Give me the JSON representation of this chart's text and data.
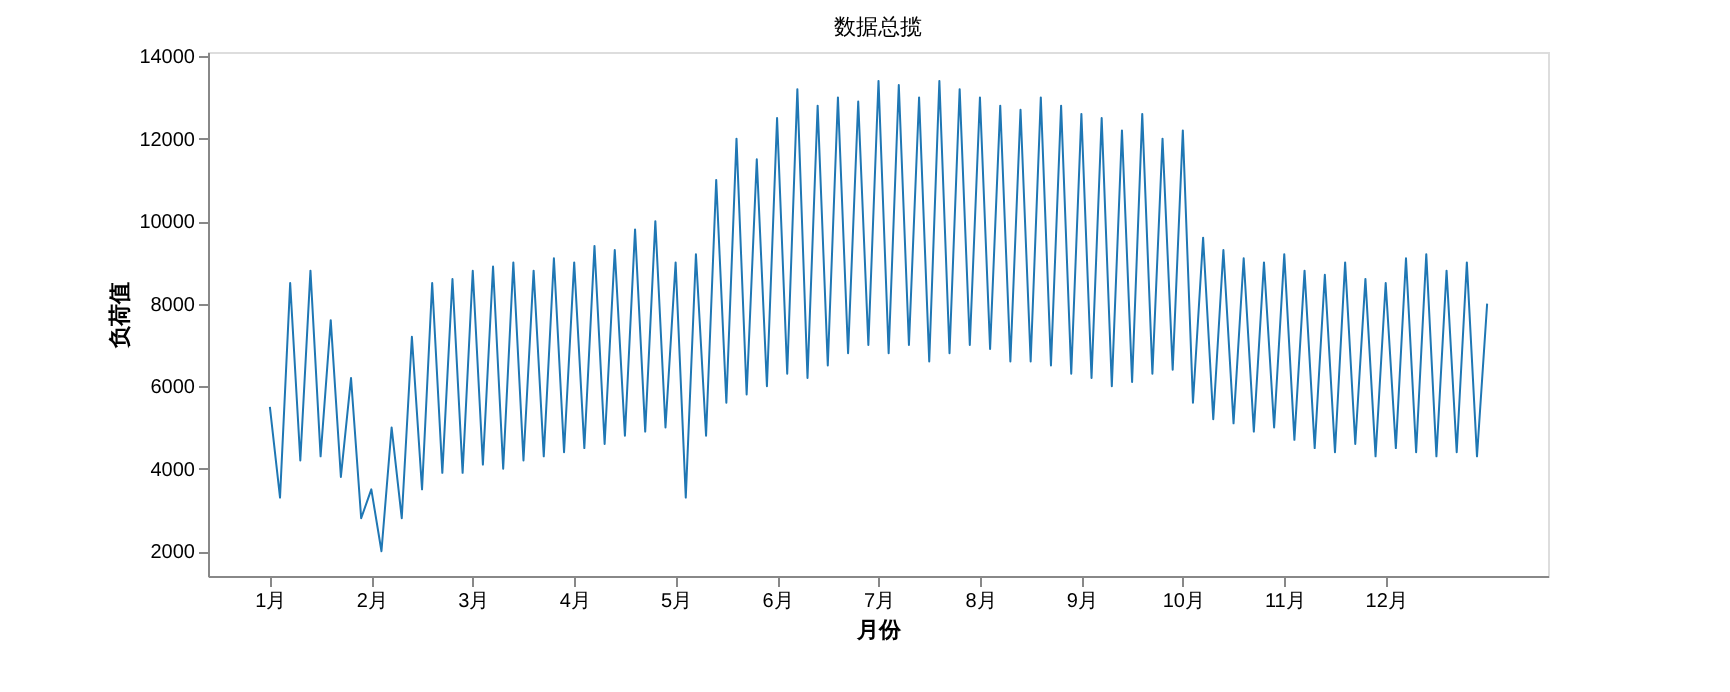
{
  "chart_data": {
    "type": "line",
    "title": "数据总揽",
    "xlabel": "月份",
    "ylabel": "负荷值",
    "x": [
      1.0,
      1.1,
      1.2,
      1.3,
      1.4,
      1.5,
      1.6,
      1.7,
      1.8,
      1.9,
      2.0,
      2.1,
      2.2,
      2.3,
      2.4,
      2.5,
      2.6,
      2.7,
      2.8,
      2.9,
      3.0,
      3.1,
      3.2,
      3.3,
      3.4,
      3.5,
      3.6,
      3.7,
      3.8,
      3.9,
      4.0,
      4.1,
      4.2,
      4.3,
      4.4,
      4.5,
      4.6,
      4.7,
      4.8,
      4.9,
      5.0,
      5.1,
      5.2,
      5.3,
      5.4,
      5.5,
      5.6,
      5.7,
      5.8,
      5.9,
      6.0,
      6.1,
      6.2,
      6.3,
      6.4,
      6.5,
      6.6,
      6.7,
      6.8,
      6.9,
      7.0,
      7.1,
      7.2,
      7.3,
      7.4,
      7.5,
      7.6,
      7.7,
      7.8,
      7.9,
      8.0,
      8.1,
      8.2,
      8.3,
      8.4,
      8.5,
      8.6,
      8.7,
      8.8,
      8.9,
      9.0,
      9.1,
      9.2,
      9.3,
      9.4,
      9.5,
      9.6,
      9.7,
      9.8,
      9.9,
      10.0,
      10.1,
      10.2,
      10.3,
      10.4,
      10.5,
      10.6,
      10.7,
      10.8,
      10.9,
      11.0,
      11.1,
      11.2,
      11.3,
      11.4,
      11.5,
      11.6,
      11.7,
      11.8,
      11.9,
      12.0,
      12.1,
      12.2,
      12.3,
      12.4,
      12.5,
      12.6,
      12.7,
      12.8,
      12.9,
      13.0
    ],
    "series": [
      {
        "color": "#1f77b4",
        "values": [
          5500,
          3300,
          8500,
          4200,
          8800,
          4300,
          7600,
          3800,
          6200,
          2800,
          3500,
          2000,
          5000,
          2800,
          7200,
          3500,
          8500,
          3900,
          8600,
          3900,
          8800,
          4100,
          8900,
          4000,
          9000,
          4200,
          8800,
          4300,
          9100,
          4400,
          9000,
          4500,
          9400,
          4600,
          9300,
          4800,
          9800,
          4900,
          10000,
          5000,
          9000,
          3300,
          9200,
          4800,
          11000,
          5600,
          12000,
          5800,
          11500,
          6000,
          12500,
          6300,
          13200,
          6200,
          12800,
          6500,
          13000,
          6800,
          12900,
          7000,
          13400,
          6800,
          13300,
          7000,
          13000,
          6600,
          13400,
          6800,
          13200,
          7000,
          13000,
          6900,
          12800,
          6600,
          12700,
          6600,
          13000,
          6500,
          12800,
          6300,
          12600,
          6200,
          12500,
          6000,
          12200,
          6100,
          12600,
          6300,
          12000,
          6400,
          12200,
          5600,
          9600,
          5200,
          9300,
          5100,
          9100,
          4900,
          9000,
          5000,
          9200,
          4700,
          8800,
          4500,
          8700,
          4400,
          9000,
          4600,
          8600,
          4300,
          8500,
          4500,
          9100,
          4400,
          9200,
          4300,
          8800,
          4400,
          9000,
          4300,
          8000
        ]
      }
    ],
    "xlim": [
      0.39,
      13.6
    ],
    "xticks": [
      {
        "value": 1,
        "label": "1月"
      },
      {
        "value": 2,
        "label": "2月"
      },
      {
        "value": 3,
        "label": "3月"
      },
      {
        "value": 4,
        "label": "4月"
      },
      {
        "value": 5,
        "label": "5月"
      },
      {
        "value": 6,
        "label": "6月"
      },
      {
        "value": 7,
        "label": "7月"
      },
      {
        "value": 8,
        "label": "8月"
      },
      {
        "value": 9,
        "label": "9月"
      },
      {
        "value": 10,
        "label": "10月"
      },
      {
        "value": 11,
        "label": "11月"
      },
      {
        "value": 12,
        "label": "12月"
      }
    ],
    "ylim": [
      1400,
      14100
    ],
    "yticks": [
      2000,
      4000,
      6000,
      8000,
      10000,
      12000,
      14000
    ],
    "grid": false,
    "marker": "none",
    "line_style": "solid"
  }
}
